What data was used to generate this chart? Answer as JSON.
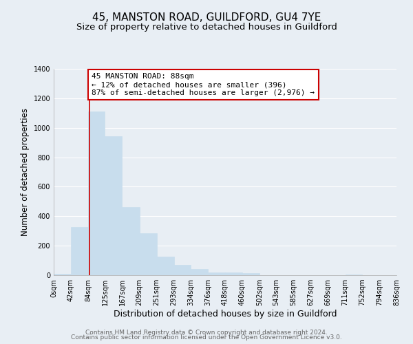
{
  "title": "45, MANSTON ROAD, GUILDFORD, GU4 7YE",
  "subtitle": "Size of property relative to detached houses in Guildford",
  "xlabel": "Distribution of detached houses by size in Guildford",
  "ylabel": "Number of detached properties",
  "bar_edges": [
    0,
    42,
    84,
    125,
    167,
    209,
    251,
    293,
    334,
    376,
    418,
    460,
    502,
    543,
    585,
    627,
    669,
    711,
    752,
    794,
    836
  ],
  "bar_heights": [
    10,
    325,
    1110,
    945,
    462,
    283,
    125,
    68,
    42,
    18,
    18,
    15,
    0,
    0,
    0,
    0,
    0,
    5,
    0,
    0
  ],
  "bar_color": "#c8dded",
  "bar_edge_color": "#c8dded",
  "property_line_x": 88,
  "property_line_color": "#cc0000",
  "annotation_line1": "45 MANSTON ROAD: 88sqm",
  "annotation_line2": "← 12% of detached houses are smaller (396)",
  "annotation_line3": "87% of semi-detached houses are larger (2,976) →",
  "annotation_box_edgecolor": "#cc0000",
  "annotation_box_facecolor": "#ffffff",
  "ylim": [
    0,
    1400
  ],
  "yticks": [
    0,
    200,
    400,
    600,
    800,
    1000,
    1200,
    1400
  ],
  "tick_labels": [
    "0sqm",
    "42sqm",
    "84sqm",
    "125sqm",
    "167sqm",
    "209sqm",
    "251sqm",
    "293sqm",
    "334sqm",
    "376sqm",
    "418sqm",
    "460sqm",
    "502sqm",
    "543sqm",
    "585sqm",
    "627sqm",
    "669sqm",
    "711sqm",
    "752sqm",
    "794sqm",
    "836sqm"
  ],
  "background_color": "#e8eef4",
  "grid_color": "#ffffff",
  "footer_line1": "Contains HM Land Registry data © Crown copyright and database right 2024.",
  "footer_line2": "Contains public sector information licensed under the Open Government Licence v3.0.",
  "title_fontsize": 11,
  "subtitle_fontsize": 9.5,
  "xlabel_fontsize": 9,
  "ylabel_fontsize": 8.5,
  "tick_fontsize": 7,
  "footer_fontsize": 6.5,
  "annot_fontsize": 8
}
